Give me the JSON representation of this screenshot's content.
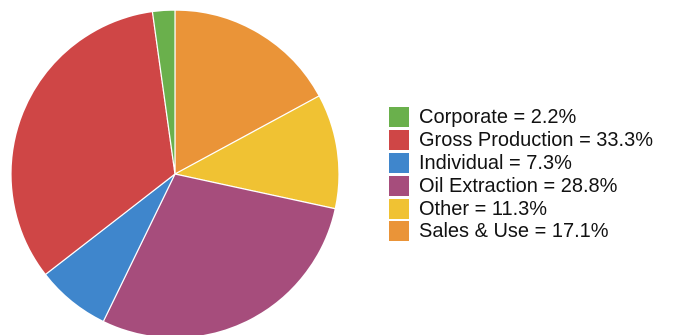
{
  "chart_data": {
    "type": "pie",
    "slices": [
      {
        "label": "Corporate",
        "value": 2.2,
        "display": "Corporate = 2.2%",
        "color": "#6ab04c"
      },
      {
        "label": "Gross Production",
        "value": 33.3,
        "display": "Gross Production = 33.3%",
        "color": "#cf4646"
      },
      {
        "label": "Individual",
        "value": 7.3,
        "display": "Individual = 7.3%",
        "color": "#3f86cc"
      },
      {
        "label": "Oil Extraction",
        "value": 28.8,
        "display": "Oil Extraction = 28.8%",
        "color": "#a64d7c"
      },
      {
        "label": "Other",
        "value": 11.3,
        "display": "Other = 11.3%",
        "color": "#f0c233"
      },
      {
        "label": "Sales & Use",
        "value": 17.1,
        "display": "Sales & Use = 17.1%",
        "color": "#ea9438"
      }
    ],
    "legend": "right"
  }
}
